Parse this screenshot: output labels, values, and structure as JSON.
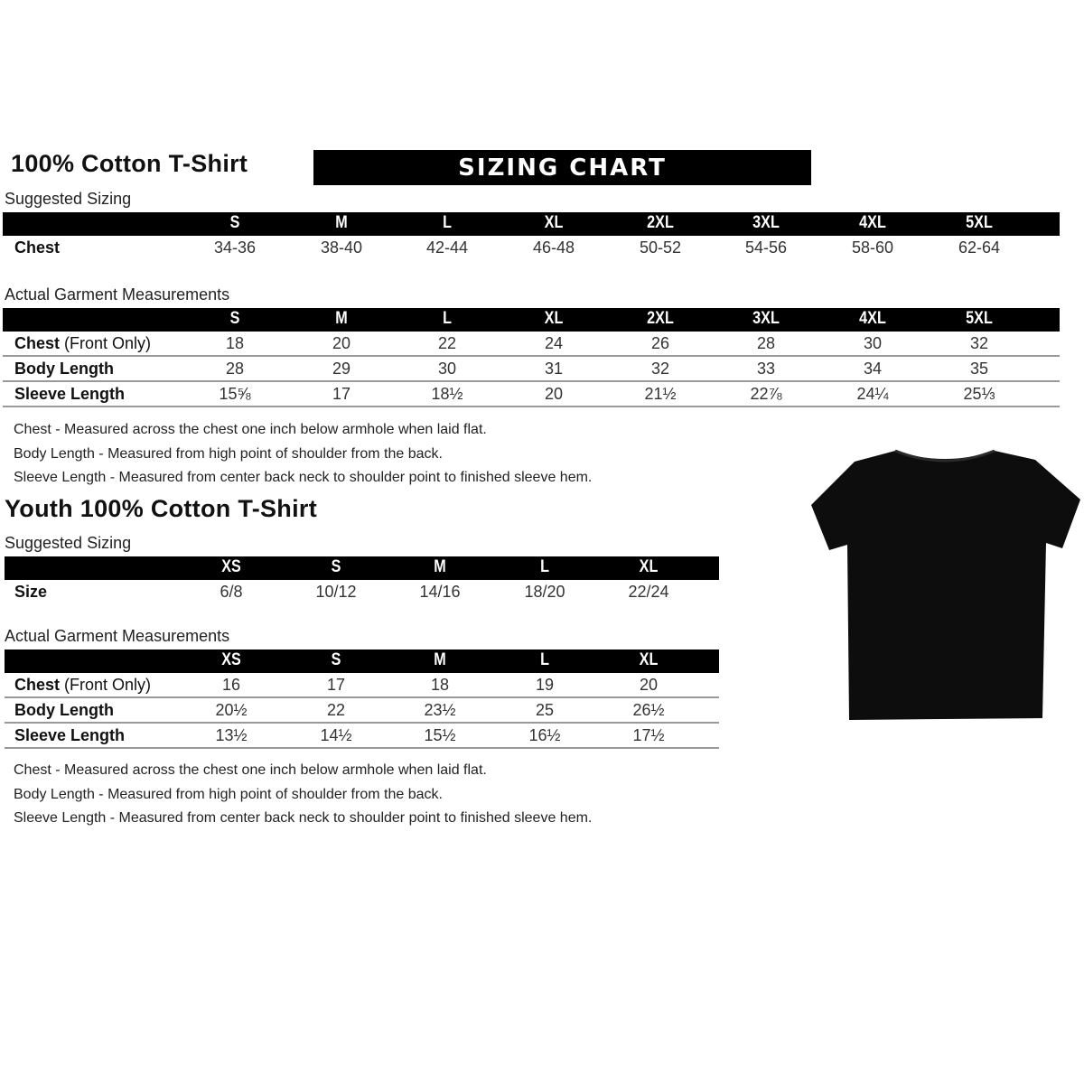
{
  "adult": {
    "title": "100% Cotton T-Shirt",
    "banner": "SIZING CHART",
    "suggested_label": "Suggested Sizing",
    "sizes": [
      "S",
      "M",
      "L",
      "XL",
      "2XL",
      "3XL",
      "4XL",
      "5XL"
    ],
    "suggested_rows": [
      {
        "label": "Chest",
        "values": [
          "34-36",
          "38-40",
          "42-44",
          "46-48",
          "50-52",
          "54-56",
          "58-60",
          "62-64"
        ]
      }
    ],
    "actual_label": "Actual Garment Measurements",
    "actual_rows": [
      {
        "label": "Chest",
        "label_suffix": " (Front Only)",
        "values": [
          "18",
          "20",
          "22",
          "24",
          "26",
          "28",
          "30",
          "32"
        ]
      },
      {
        "label": "Body Length",
        "label_suffix": "",
        "values": [
          "28",
          "29",
          "30",
          "31",
          "32",
          "33",
          "34",
          "35"
        ]
      },
      {
        "label": "Sleeve Length",
        "label_suffix": "",
        "values": [
          "15⅝",
          "17",
          "18½",
          "20",
          "21½",
          "22⅞",
          "24¼",
          "25⅓"
        ]
      }
    ],
    "notes": [
      "Chest - Measured across the chest one inch below armhole when laid flat.",
      "Body Length - Measured from high point of shoulder from the back.",
      "Sleeve Length - Measured from center back neck to shoulder point to finished sleeve hem."
    ]
  },
  "youth": {
    "title": "Youth 100% Cotton T-Shirt",
    "suggested_label": "Suggested Sizing",
    "sizes": [
      "XS",
      "S",
      "M",
      "L",
      "XL"
    ],
    "suggested_rows": [
      {
        "label": "Size",
        "values": [
          "6/8",
          "10/12",
          "14/16",
          "18/20",
          "22/24"
        ]
      }
    ],
    "actual_label": "Actual Garment Measurements",
    "actual_rows": [
      {
        "label": "Chest",
        "label_suffix": " (Front Only)",
        "values": [
          "16",
          "17",
          "18",
          "19",
          "20"
        ]
      },
      {
        "label": "Body Length",
        "label_suffix": "",
        "values": [
          "20½",
          "22",
          "23½",
          "25",
          "26½"
        ]
      },
      {
        "label": "Sleeve Length",
        "label_suffix": "",
        "values": [
          "13½",
          "14½",
          "15½",
          "16½",
          "17½"
        ]
      }
    ],
    "notes": [
      "Chest - Measured across the chest one inch below armhole when laid flat.",
      "Body Length - Measured from high point of shoulder from the back.",
      "Sleeve Length - Measured from center back neck to shoulder point to finished sleeve hem."
    ]
  },
  "image": {
    "name": "black-tshirt",
    "color": "#0d0d0d"
  }
}
